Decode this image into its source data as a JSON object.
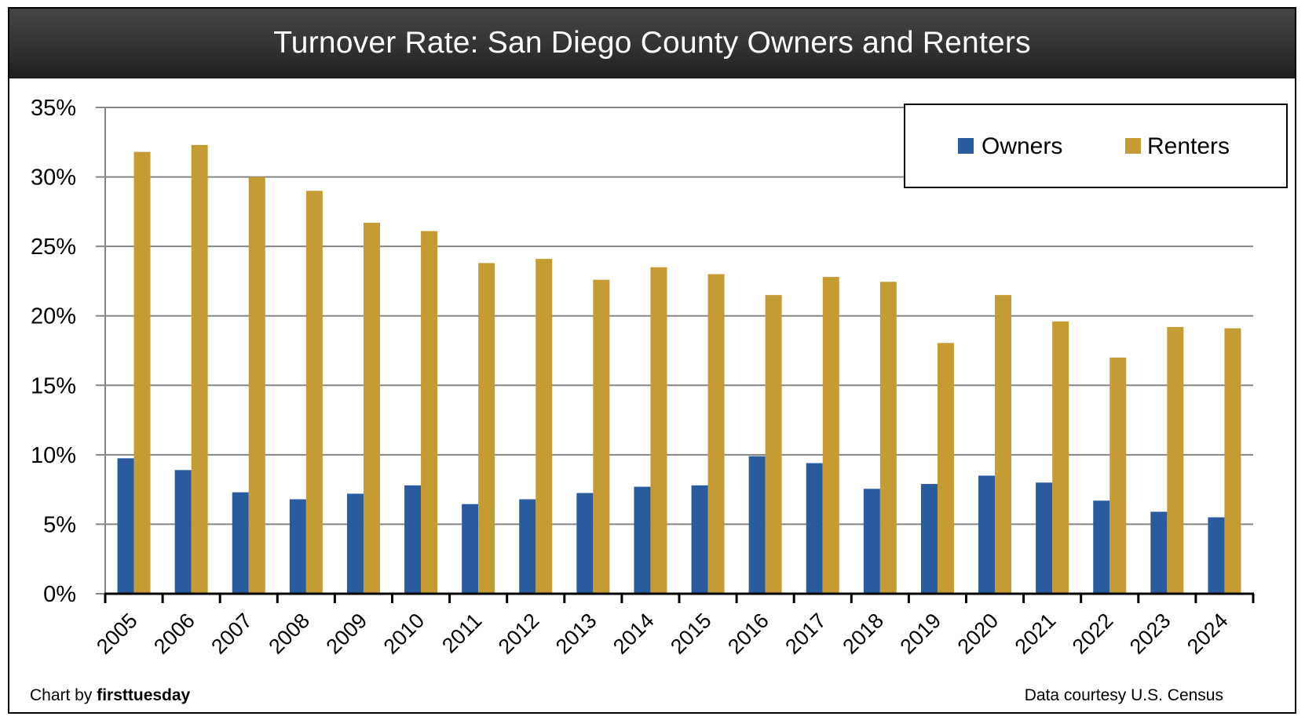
{
  "chart_data": {
    "type": "bar",
    "title": "Turnover Rate: San Diego County Owners and Renters",
    "xlabel": "",
    "ylabel": "",
    "ylim": [
      0,
      35
    ],
    "yticks": [
      "0%",
      "5%",
      "10%",
      "15%",
      "20%",
      "25%",
      "30%",
      "35%"
    ],
    "ytick_values": [
      0,
      5,
      10,
      15,
      20,
      25,
      30,
      35
    ],
    "grid": true,
    "legend_position": "top-right",
    "categories": [
      "2005",
      "2006",
      "2007",
      "2008",
      "2009",
      "2010",
      "2011",
      "2012",
      "2013",
      "2014",
      "2015",
      "2016",
      "2017",
      "2018",
      "2019",
      "2020",
      "2021",
      "2022",
      "2023",
      "2024"
    ],
    "series": [
      {
        "name": "Owners",
        "color": "#2a5b9e",
        "values": [
          9.75,
          8.9,
          7.3,
          6.8,
          7.2,
          7.8,
          6.45,
          6.8,
          7.25,
          7.7,
          7.8,
          9.9,
          9.4,
          7.55,
          7.9,
          8.5,
          8.0,
          6.7,
          5.9,
          5.5
        ]
      },
      {
        "name": "Renters",
        "color": "#c59b34",
        "values": [
          31.8,
          32.3,
          30.0,
          29.0,
          26.7,
          26.1,
          23.8,
          24.1,
          22.6,
          23.5,
          23.0,
          21.5,
          22.8,
          22.45,
          18.05,
          21.5,
          19.6,
          17.0,
          19.2,
          19.1
        ]
      }
    ]
  },
  "footer": {
    "credit_prefix": "Chart by ",
    "credit_brand": "firsttuesday",
    "source": "Data courtesy U.S. Census"
  },
  "colors": {
    "title_bar": "#2e2e2e",
    "gridline": "#868686",
    "axis": "#000000"
  }
}
